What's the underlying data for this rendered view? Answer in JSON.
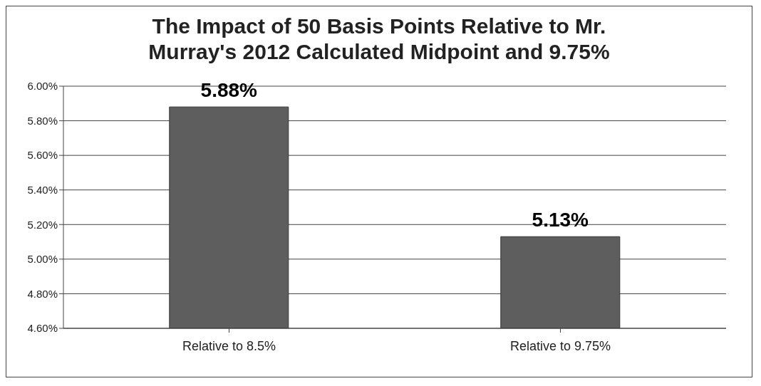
{
  "chart_data": {
    "type": "bar",
    "title": "The Impact of 50 Basis Points Relative to Mr. Murray's 2012 Calculated Midpoint and 9.75%",
    "categories": [
      "Relative to 8.5%",
      "Relative to 9.75%"
    ],
    "values": [
      5.88,
      5.13
    ],
    "color": "#5e5e5e",
    "value_labels": [
      "5.88%",
      "5.13%"
    ],
    "ylim": [
      4.6,
      6.0
    ],
    "yticks": [
      {
        "value": 4.6,
        "label": "4.60%"
      },
      {
        "value": 4.8,
        "label": "4.80%"
      },
      {
        "value": 5.0,
        "label": "5.00%"
      },
      {
        "value": 5.2,
        "label": "5.20%"
      },
      {
        "value": 5.4,
        "label": "5.40%"
      },
      {
        "value": 5.6,
        "label": "5.60%"
      },
      {
        "value": 5.8,
        "label": "5.80%"
      },
      {
        "value": 6.0,
        "label": "6.00%"
      }
    ],
    "grid": "y"
  }
}
